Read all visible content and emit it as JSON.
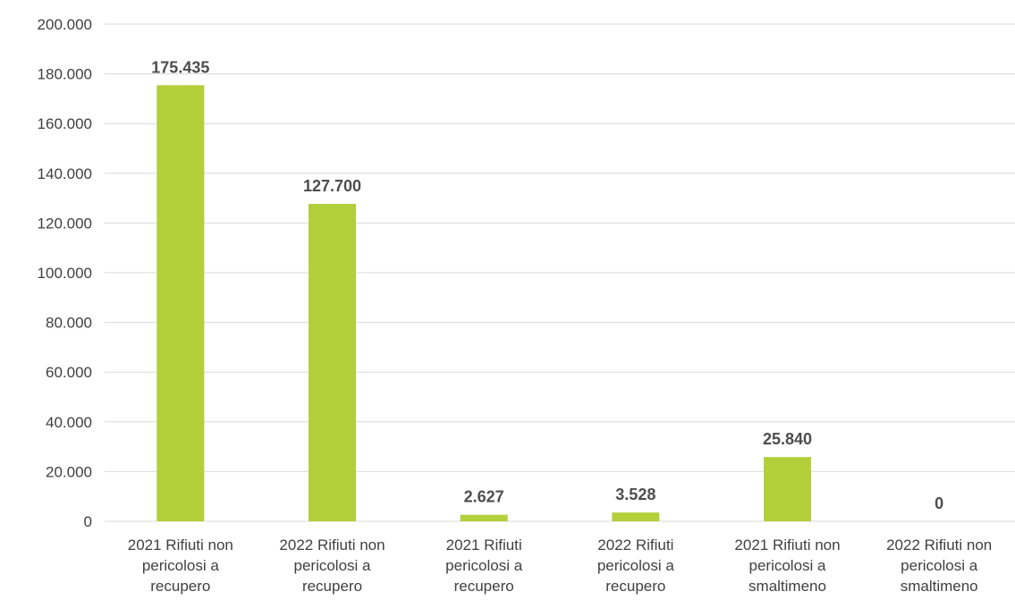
{
  "chart_data": {
    "type": "bar",
    "categories": [
      [
        "2021 Rifiuti non",
        "pericolosi a",
        "recupero"
      ],
      [
        "2022 Rifiuti non",
        "pericolosi a",
        "recupero"
      ],
      [
        "2021 Rifiuti",
        "pericolosi a",
        "recupero"
      ],
      [
        "2022 Rifiuti",
        "pericolosi a",
        "recupero"
      ],
      [
        "2021 Rifiuti non",
        "pericolosi a",
        "smaltimeno"
      ],
      [
        "2022 Rifiuti non",
        "pericolosi a",
        "smaltimeno"
      ]
    ],
    "values": [
      175435,
      127700,
      2627,
      3528,
      25840,
      0
    ],
    "data_labels": [
      "175.435",
      "127.700",
      "2.627",
      "3.528",
      "25.840",
      "0"
    ],
    "ylim": [
      0,
      200000
    ],
    "yticks": [
      0,
      20000,
      40000,
      60000,
      80000,
      100000,
      120000,
      140000,
      160000,
      180000,
      200000
    ],
    "ytick_labels": [
      "0",
      "20.000",
      "40.000",
      "60.000",
      "80.000",
      "100.000",
      "120.000",
      "140.000",
      "160.000",
      "180.000",
      "200.000"
    ],
    "grid": true,
    "colors": {
      "bar": "#b3cf3a",
      "grid": "#d9d9d9",
      "text": "#404040"
    }
  }
}
